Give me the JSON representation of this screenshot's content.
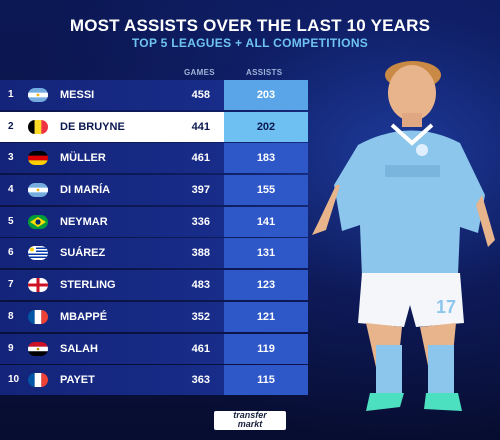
{
  "header": {
    "title": "MOST ASSISTS OVER THE LAST 10 YEARS",
    "subtitle": "TOP 5 LEAGUES + ALL COMPETITIONS"
  },
  "columns": {
    "games": "GAMES",
    "assists": "ASSISTS"
  },
  "rows": [
    {
      "rank": "1",
      "flag": "argentina-flag",
      "name": "MESSI",
      "games": "458",
      "assists": "203"
    },
    {
      "rank": "2",
      "flag": "belgium-flag",
      "name": "DE BRUYNE",
      "games": "441",
      "assists": "202"
    },
    {
      "rank": "3",
      "flag": "germany-flag",
      "name": "MÜLLER",
      "games": "461",
      "assists": "183"
    },
    {
      "rank": "4",
      "flag": "argentina-flag",
      "name": "DI MARÍA",
      "games": "397",
      "assists": "155"
    },
    {
      "rank": "5",
      "flag": "brazil-flag",
      "name": "NEYMAR",
      "games": "336",
      "assists": "141"
    },
    {
      "rank": "6",
      "flag": "uruguay-flag",
      "name": "SUÁREZ",
      "games": "388",
      "assists": "131"
    },
    {
      "rank": "7",
      "flag": "england-flag",
      "name": "STERLING",
      "games": "483",
      "assists": "123"
    },
    {
      "rank": "8",
      "flag": "france-flag",
      "name": "MBAPPÉ",
      "games": "352",
      "assists": "121"
    },
    {
      "rank": "9",
      "flag": "egypt-flag",
      "name": "SALAH",
      "games": "461",
      "assists": "119"
    },
    {
      "rank": "10",
      "flag": "france-flag",
      "name": "PAYET",
      "games": "363",
      "assists": "115"
    }
  ],
  "highlight_rank": "2",
  "logo": {
    "line1": "transfer",
    "line2": "markt"
  },
  "colors": {
    "background": "#0a1340",
    "accent": "#6fc3f0",
    "assists_cell": "#2e57c8",
    "highlight": "#ffffff"
  }
}
